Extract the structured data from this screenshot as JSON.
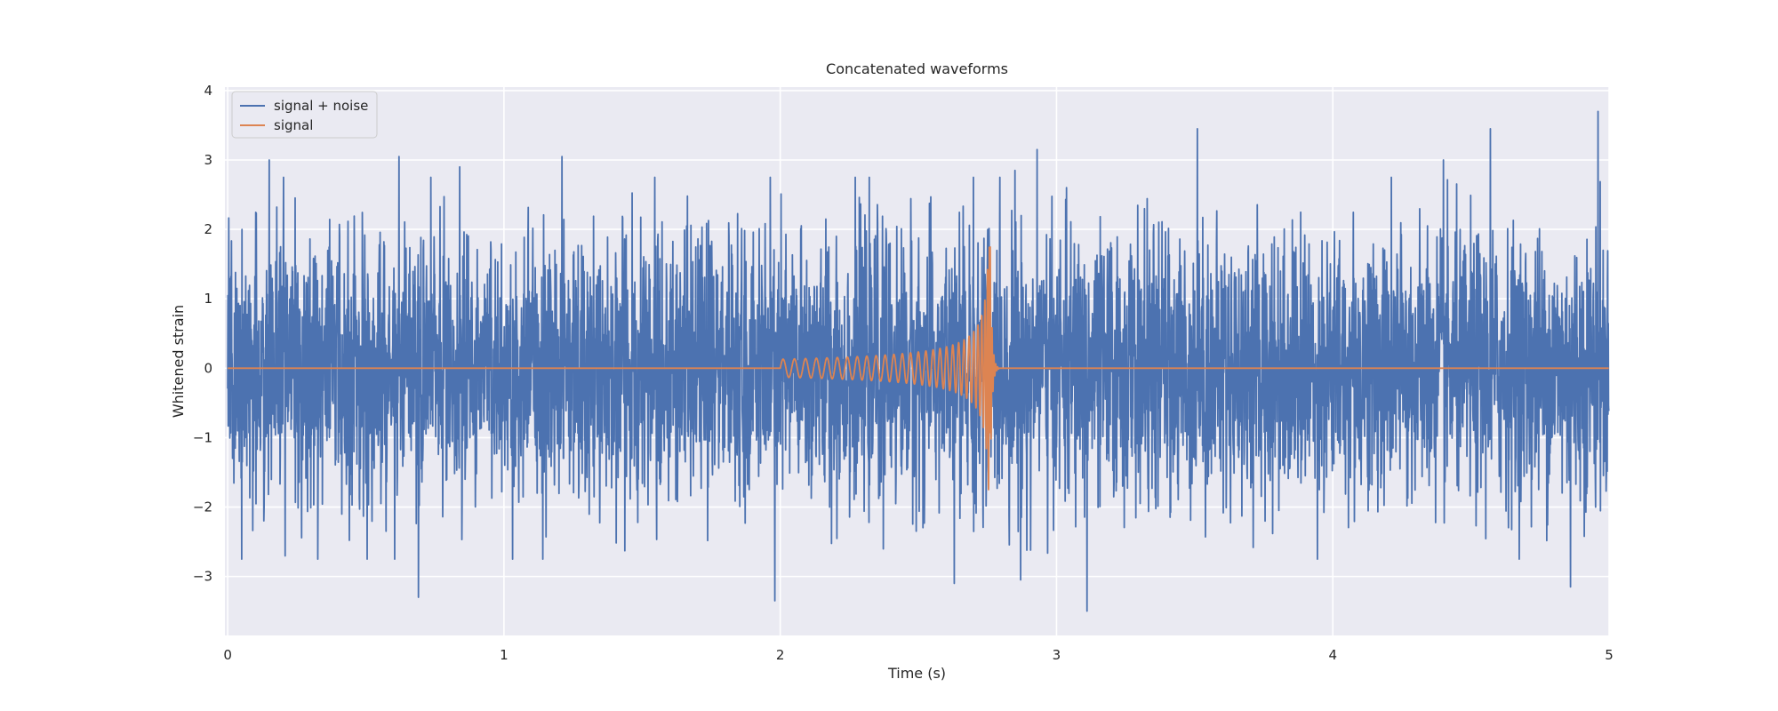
{
  "chart_data": {
    "type": "line",
    "title": "Concatenated waveforms",
    "xlabel": "Time (s)",
    "ylabel": "Whitened strain",
    "xlim": [
      -0.01,
      5.0
    ],
    "ylim": [
      -3.85,
      4.05
    ],
    "xticks": [
      0,
      1,
      2,
      3,
      4,
      5
    ],
    "xtick_labels": [
      "0",
      "1",
      "2",
      "3",
      "4",
      "5"
    ],
    "yticks": [
      -3,
      -2,
      -1,
      0,
      1,
      2,
      3,
      4
    ],
    "ytick_labels": [
      "−3",
      "−2",
      "−1",
      "0",
      "1",
      "2",
      "3",
      "4"
    ],
    "grid": true,
    "legend_position": "top-left",
    "series": [
      {
        "name": "signal + noise",
        "color": "#4c72b0",
        "sample_rate_hz": 1024,
        "duration_s": 5.0,
        "noise_std": 0.95,
        "noise_seed": 7,
        "peaks": [
          [
            0.15,
            3.0
          ],
          [
            0.62,
            3.05
          ],
          [
            0.69,
            -3.3
          ],
          [
            0.84,
            2.9
          ],
          [
            1.21,
            3.05
          ],
          [
            1.98,
            -3.35
          ],
          [
            2.63,
            -3.1
          ],
          [
            2.85,
            2.85
          ],
          [
            2.87,
            -3.05
          ],
          [
            2.93,
            3.15
          ],
          [
            3.11,
            -3.5
          ],
          [
            3.51,
            3.45
          ],
          [
            4.4,
            3.0
          ],
          [
            4.57,
            3.45
          ],
          [
            4.86,
            -3.15
          ],
          [
            4.96,
            3.7
          ]
        ]
      },
      {
        "name": "signal",
        "color": "#dd8452",
        "chirp_start_s": 2.0,
        "merger_time_s": 2.76,
        "ringdown_end_s": 2.79,
        "start_amplitude": 0.13,
        "peak_amplitude": 1.75,
        "start_frequency_hz": 24,
        "merger_frequency_hz": 150
      }
    ]
  }
}
